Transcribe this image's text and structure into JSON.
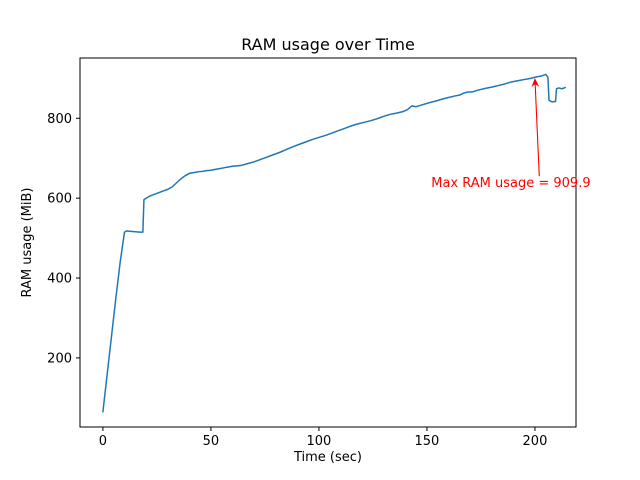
{
  "chart_data": {
    "type": "line",
    "title": "RAM usage over Time",
    "xlabel": "Time (sec)",
    "ylabel": "RAM usage (MiB)",
    "xlim": [
      -10.6,
      219
    ],
    "ylim": [
      27,
      951
    ],
    "xticks": [
      0,
      50,
      100,
      150,
      200
    ],
    "yticks": [
      200,
      400,
      600,
      800
    ],
    "grid": false,
    "legend": "none",
    "line_color": "#1f77b4",
    "series": [
      {
        "name": "RAM usage",
        "points": [
          [
            0,
            65
          ],
          [
            2,
            160
          ],
          [
            4,
            255
          ],
          [
            6,
            350
          ],
          [
            8,
            440
          ],
          [
            10,
            515
          ],
          [
            11,
            518
          ],
          [
            13,
            517
          ],
          [
            15,
            516
          ],
          [
            17,
            515
          ],
          [
            18.5,
            515
          ],
          [
            19,
            596
          ],
          [
            20,
            600
          ],
          [
            21,
            603
          ],
          [
            22,
            606
          ],
          [
            24,
            610
          ],
          [
            26,
            614
          ],
          [
            28,
            618
          ],
          [
            30,
            622
          ],
          [
            32,
            628
          ],
          [
            34,
            638
          ],
          [
            36,
            648
          ],
          [
            38,
            656
          ],
          [
            40,
            662
          ],
          [
            42,
            664
          ],
          [
            44,
            666
          ],
          [
            46,
            667
          ],
          [
            48,
            669
          ],
          [
            50,
            670
          ],
          [
            52,
            672
          ],
          [
            54,
            674
          ],
          [
            56,
            676
          ],
          [
            58,
            678
          ],
          [
            60,
            680
          ],
          [
            62,
            681
          ],
          [
            64,
            682
          ],
          [
            66,
            685
          ],
          [
            68,
            688
          ],
          [
            70,
            691
          ],
          [
            73,
            697
          ],
          [
            76,
            703
          ],
          [
            79,
            709
          ],
          [
            82,
            715
          ],
          [
            85,
            722
          ],
          [
            88,
            729
          ],
          [
            91,
            735
          ],
          [
            94,
            741
          ],
          [
            97,
            747
          ],
          [
            100,
            752
          ],
          [
            103,
            757
          ],
          [
            106,
            763
          ],
          [
            109,
            769
          ],
          [
            112,
            775
          ],
          [
            115,
            781
          ],
          [
            118,
            786
          ],
          [
            121,
            790
          ],
          [
            124,
            794
          ],
          [
            127,
            799
          ],
          [
            130,
            805
          ],
          [
            133,
            810
          ],
          [
            136,
            813
          ],
          [
            139,
            817
          ],
          [
            141,
            822
          ],
          [
            143,
            831
          ],
          [
            145,
            829
          ],
          [
            148,
            834
          ],
          [
            151,
            839
          ],
          [
            154,
            843
          ],
          [
            157,
            848
          ],
          [
            160,
            852
          ],
          [
            163,
            856
          ],
          [
            165,
            858
          ],
          [
            167,
            863
          ],
          [
            169,
            866
          ],
          [
            171,
            866
          ],
          [
            174,
            871
          ],
          [
            177,
            875
          ],
          [
            180,
            878
          ],
          [
            183,
            882
          ],
          [
            186,
            886
          ],
          [
            189,
            891
          ],
          [
            192,
            894
          ],
          [
            195,
            897
          ],
          [
            198,
            900
          ],
          [
            201,
            904
          ],
          [
            203,
            906
          ],
          [
            205,
            909.9
          ],
          [
            206,
            903
          ],
          [
            206.5,
            845
          ],
          [
            208,
            841
          ],
          [
            209.5,
            842
          ],
          [
            210,
            874
          ],
          [
            211,
            876
          ],
          [
            212.5,
            874
          ],
          [
            214,
            877
          ]
        ]
      }
    ],
    "annotation": {
      "text": "Max RAM usage = 909.9",
      "color": "#ff0000",
      "text_pos": [
        152,
        628
      ],
      "arrow_start": [
        202,
        655
      ],
      "arrow_tip": [
        200,
        898
      ],
      "max_value": 909.9
    }
  }
}
